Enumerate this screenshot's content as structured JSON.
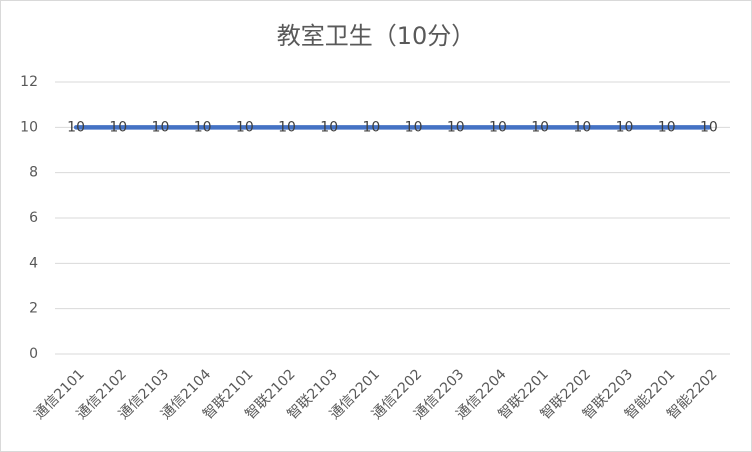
{
  "chart_data": {
    "type": "line",
    "title": "教室卫生（10分）",
    "categories": [
      "通信2101",
      "通信2102",
      "通信2103",
      "通信2104",
      "智联2101",
      "智联2102",
      "智联2103",
      "通信2201",
      "通信2202",
      "通信2203",
      "通信2204",
      "智联2201",
      "智联2202",
      "智联2203",
      "智能2201",
      "智能2202"
    ],
    "values": [
      10,
      10,
      10,
      10,
      10,
      10,
      10,
      10,
      10,
      10,
      10,
      10,
      10,
      10,
      10,
      10
    ],
    "color": "#4472c4",
    "ylim": [
      0,
      12
    ],
    "yticks": [
      0,
      2,
      4,
      6,
      8,
      10,
      12
    ],
    "grid": true,
    "data_labels": true
  }
}
